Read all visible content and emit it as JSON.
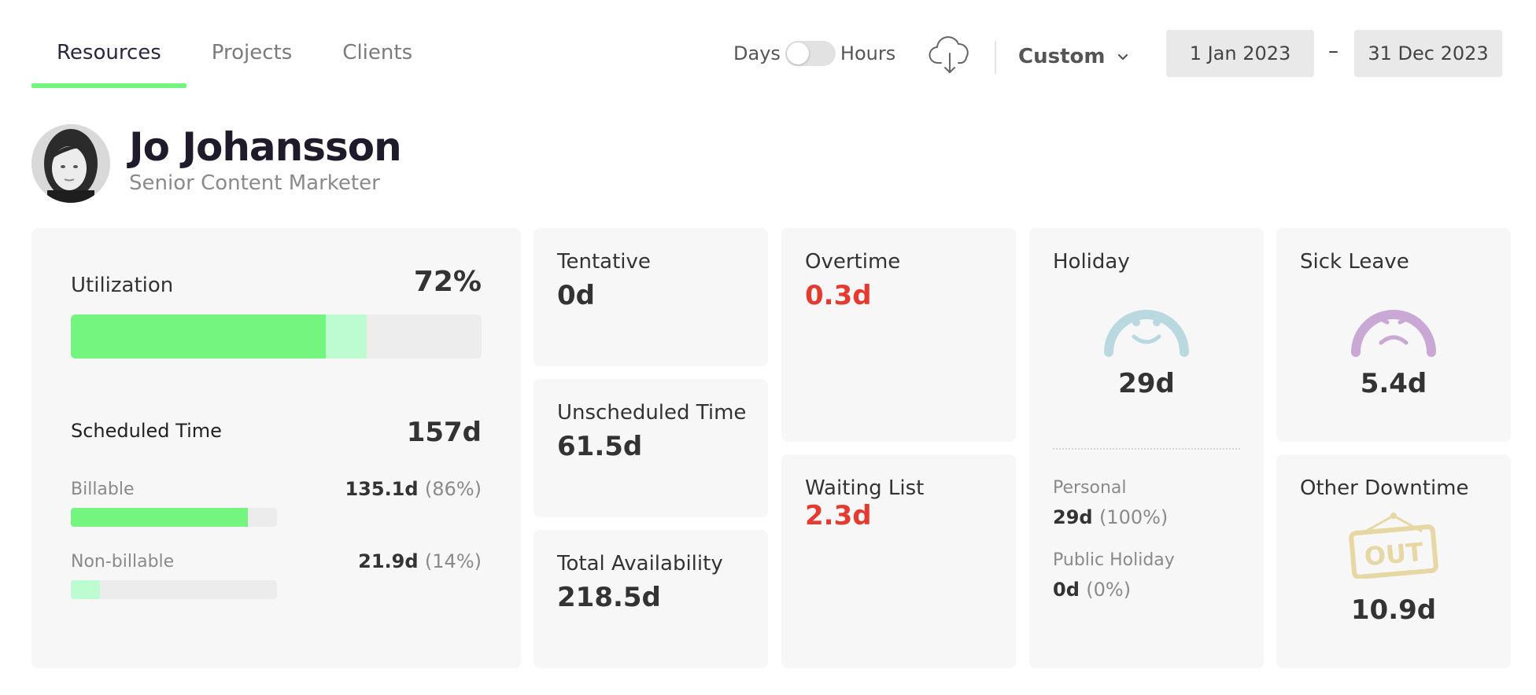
{
  "tabs": [
    {
      "label": "Resources",
      "active": true
    },
    {
      "label": "Projects",
      "active": false
    },
    {
      "label": "Clients",
      "active": false
    }
  ],
  "unit_toggle": {
    "left_label": "Days",
    "right_label": "Hours",
    "selected": "Days"
  },
  "download_icon": "cloud-download-icon",
  "range_select": {
    "value": "Custom",
    "icon": "chevron-down-icon"
  },
  "date_range": {
    "from": "1 Jan 2023",
    "separator": "–",
    "to": "31 Dec 2023"
  },
  "profile": {
    "name": "Jo Johansson",
    "role": "Senior Content Marketer"
  },
  "utilization": {
    "title": "Utilization",
    "value": "72%",
    "bar": {
      "billable_fraction": 0.62,
      "nonbillable_fraction": 0.1
    },
    "scheduled": {
      "title": "Scheduled Time",
      "value": "157d"
    },
    "billable": {
      "label": "Billable",
      "value": "135.1d",
      "pct": "(86%)",
      "fraction": 0.86
    },
    "nonbillable": {
      "label": "Non-billable",
      "value": "21.9d",
      "pct": "(14%)",
      "fraction": 0.14
    }
  },
  "tentative": {
    "title": "Tentative",
    "value": "0d"
  },
  "unscheduled": {
    "title": "Unscheduled Time",
    "value": "61.5d"
  },
  "availability": {
    "title": "Total Availability",
    "value": "218.5d"
  },
  "overtime": {
    "title": "Overtime",
    "value": "0.3d"
  },
  "waiting": {
    "title": "Waiting List",
    "value": "2.3d"
  },
  "holiday": {
    "title": "Holiday",
    "value": "29d",
    "icon": "smiley-face-icon",
    "personal": {
      "label": "Personal",
      "value": "29d",
      "pct": "(100%)"
    },
    "public": {
      "label": "Public Holiday",
      "value": "0d",
      "pct": "(0%)"
    }
  },
  "sick": {
    "title": "Sick Leave",
    "value": "5.4d",
    "icon": "sad-face-icon"
  },
  "downtime": {
    "title": "Other Downtime",
    "value": "10.9d",
    "icon": "out-sign-icon",
    "sign_text": "OUT"
  },
  "colors": {
    "accent_green": "#73f57f",
    "light_green": "#bdfbd0",
    "alert_red": "#e53a2f",
    "holiday_blue": "#b9d8e0",
    "sick_purple": "#c9a8d6",
    "downtime_gold": "#e6d7a4"
  }
}
